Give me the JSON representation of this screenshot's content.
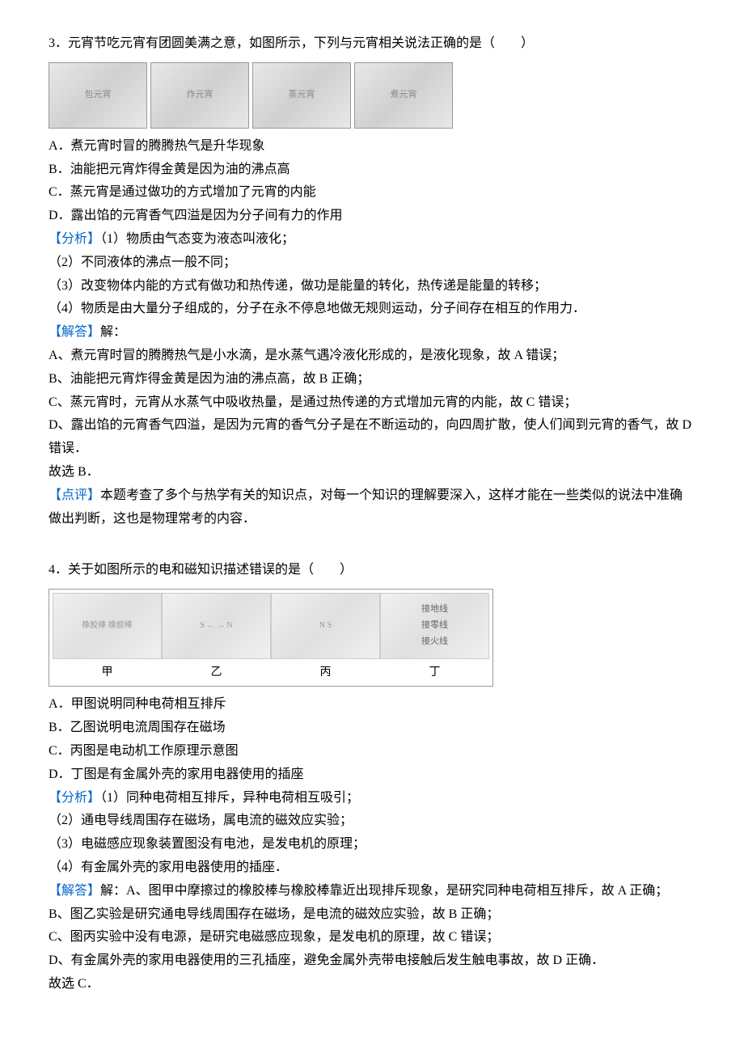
{
  "q3": {
    "number": "3",
    "stem": "．元宵节吃元宵有团圆美满之意，如图所示，下列与元宵相关说法正确的是（　　）",
    "images": [
      {
        "caption": "包元宵"
      },
      {
        "caption": "炸元宵"
      },
      {
        "caption": "蒸元宵"
      },
      {
        "caption": "煮元宵"
      }
    ],
    "options": {
      "a": "A．煮元宵时冒的腾腾热气是升华现象",
      "b": "B．油能把元宵炸得金黄是因为油的沸点高",
      "c": "C．蒸元宵是通过做功的方式增加了元宵的内能",
      "d": "D．露出馅的元宵香气四溢是因为分子间有力的作用"
    },
    "analysis_label": "【分析】",
    "analysis_items": [
      "（1）物质由气态变为液态叫液化；",
      "（2）不同液体的沸点一般不同；",
      "（3）改变物体内能的方式有做功和热传递，做功是能量的转化，热传递是能量的转移；",
      "（4）物质是由大量分子组成的，分子在永不停息地做无规则运动，分子间存在相互的作用力．"
    ],
    "answer_label": "【解答】",
    "answer_intro": "解：",
    "answer_items": [
      "A、煮元宵时冒的腾腾热气是小水滴，是水蒸气遇冷液化形成的，是液化现象，故 A 错误；",
      "B、油能把元宵炸得金黄是因为油的沸点高，故 B 正确；",
      "C、蒸元宵时，元宵从水蒸气中吸收热量，是通过热传递的方式增加元宵的内能，故 C 错误；",
      "D、露出馅的元宵香气四溢，是因为元宵的香气分子是在不断运动的，向四周扩散，使人们闻到元宵的香气，故 D 错误．"
    ],
    "conclusion": "故选 B．",
    "comment_label": "【点评】",
    "comment_text": "本题考查了多个与热学有关的知识点，对每一个知识的理解要深入，这样才能在一些类似的说法中准确做出判断，这也是物理常考的内容．"
  },
  "q4": {
    "number": "4",
    "stem": "．关于如图所示的电和磁知识描述错误的是（　　）",
    "images": [
      {
        "label": "甲",
        "desc": "橡胶棒 橡胶棒"
      },
      {
        "label": "乙",
        "desc": "S ← → N"
      },
      {
        "label": "丙",
        "desc": "N S"
      },
      {
        "label": "丁",
        "desc": "",
        "annotation": "接地线\n接零线\n接火线"
      }
    ],
    "options": {
      "a": "A．甲图说明同种电荷相互排斥",
      "b": "B．乙图说明电流周围存在磁场",
      "c": "C．丙图是电动机工作原理示意图",
      "d": "D．丁图是有金属外壳的家用电器使用的插座"
    },
    "analysis_label": "【分析】",
    "analysis_items": [
      "（1）同种电荷相互排斥，异种电荷相互吸引；",
      "（2）通电导线周围存在磁场，属电流的磁效应实验；",
      "（3）电磁感应现象装置图没有电池，是发电机的原理；",
      "（4）有金属外壳的家用电器使用的插座．"
    ],
    "answer_label": "【解答】",
    "answer_intro": "解：",
    "answer_items": [
      "A、图甲中摩擦过的橡胶棒与橡胶棒靠近出现排斥现象，是研究同种电荷相互排斥，故 A 正确；",
      "B、图乙实验是研究通电导线周围存在磁场，是电流的磁效应实验，故 B 正确；",
      "C、图丙实验中没有电源，是研究电磁感应现象，是发电机的原理，故 C 错误；",
      "D、有金属外壳的家用电器使用的三孔插座，避免金属外壳带电接触后发生触电事故，故 D 正确．"
    ],
    "conclusion": "故选 C．"
  }
}
